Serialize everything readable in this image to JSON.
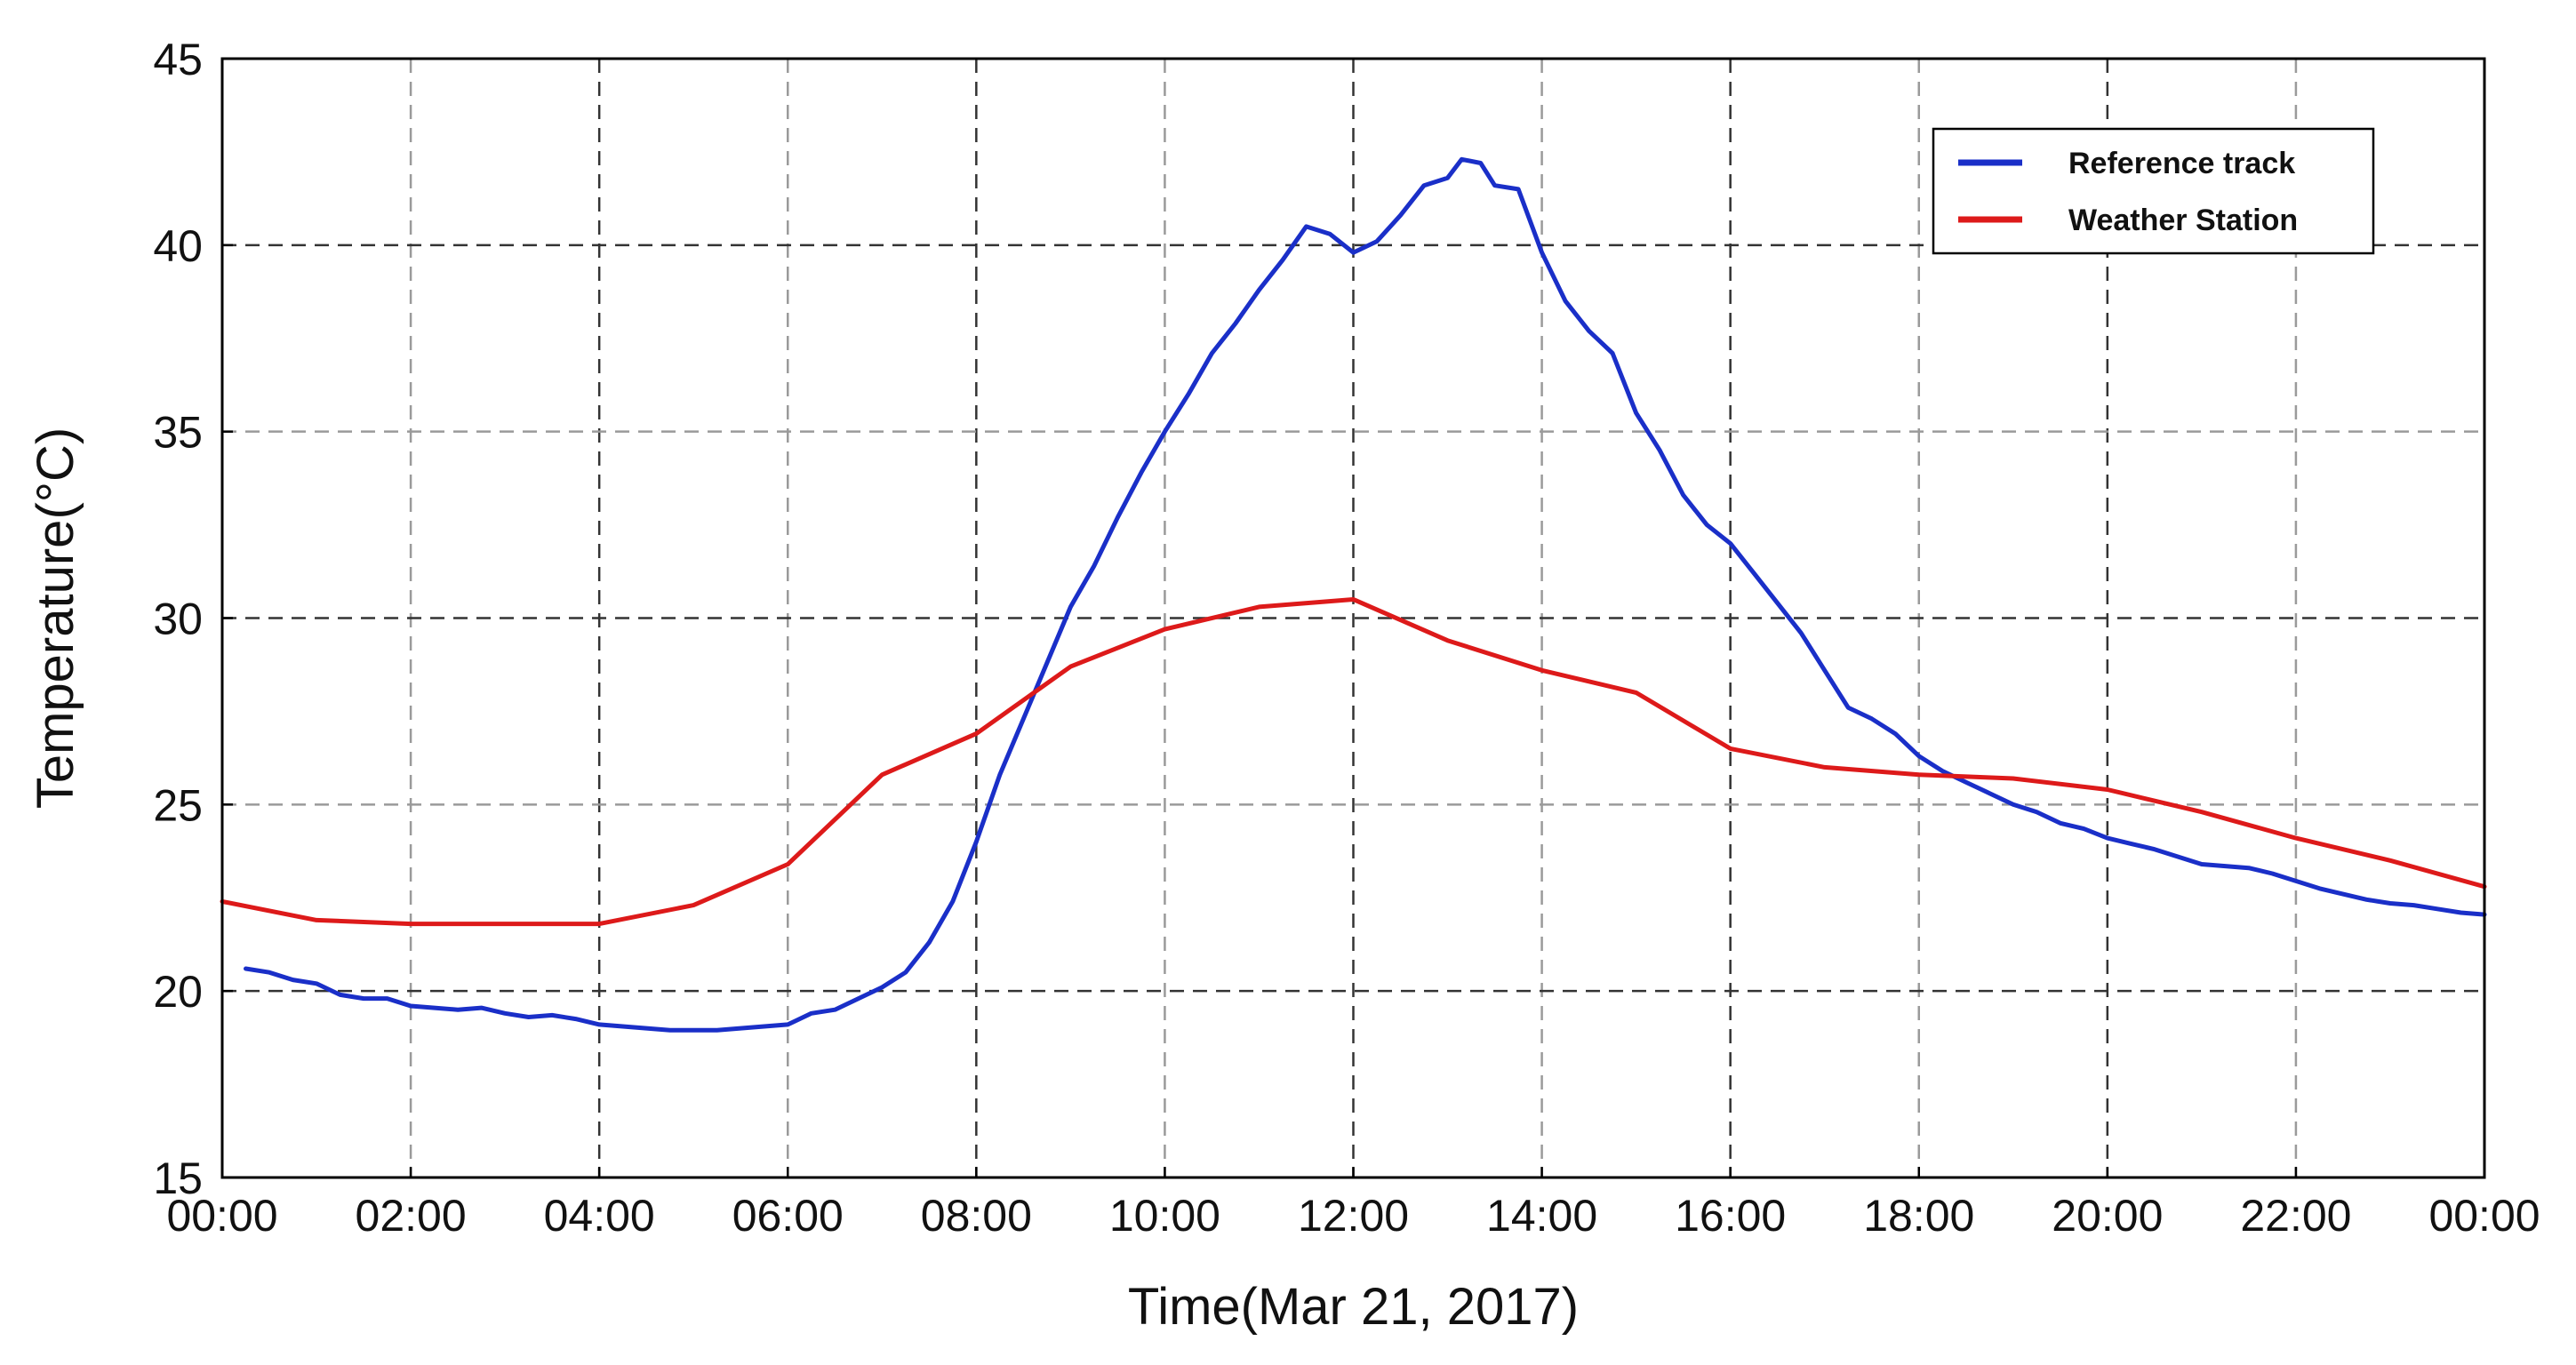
{
  "chart_data": {
    "type": "line",
    "xlabel": "Time(Mar 21, 2017)",
    "ylabel": "Temperature(°C)",
    "x_unit": "hours",
    "xlim": [
      0,
      24
    ],
    "ylim": [
      15,
      45
    ],
    "x_ticks": [
      0,
      2,
      4,
      6,
      8,
      10,
      12,
      14,
      16,
      18,
      20,
      22,
      24
    ],
    "x_tick_labels": [
      "00:00",
      "02:00",
      "04:00",
      "06:00",
      "08:00",
      "10:00",
      "12:00",
      "14:00",
      "16:00",
      "18:00",
      "20:00",
      "22:00",
      "00:00"
    ],
    "y_ticks": [
      15,
      20,
      25,
      30,
      35,
      40,
      45
    ],
    "y_tick_labels": [
      "15",
      "20",
      "25",
      "30",
      "35",
      "40",
      "45"
    ],
    "grid": true,
    "legend_position": "top-right",
    "series": [
      {
        "name": "Reference track",
        "color": "#1a2fc8",
        "points": [
          [
            0.25,
            20.6
          ],
          [
            0.5,
            20.5
          ],
          [
            0.75,
            20.3
          ],
          [
            1.0,
            20.2
          ],
          [
            1.25,
            19.9
          ],
          [
            1.5,
            19.8
          ],
          [
            1.75,
            19.8
          ],
          [
            2.0,
            19.6
          ],
          [
            2.25,
            19.55
          ],
          [
            2.5,
            19.5
          ],
          [
            2.75,
            19.55
          ],
          [
            3.0,
            19.4
          ],
          [
            3.25,
            19.3
          ],
          [
            3.5,
            19.35
          ],
          [
            3.75,
            19.25
          ],
          [
            4.0,
            19.1
          ],
          [
            4.25,
            19.05
          ],
          [
            4.5,
            19.0
          ],
          [
            4.75,
            18.95
          ],
          [
            5.0,
            18.95
          ],
          [
            5.25,
            18.95
          ],
          [
            5.5,
            19.0
          ],
          [
            5.75,
            19.05
          ],
          [
            6.0,
            19.1
          ],
          [
            6.25,
            19.4
          ],
          [
            6.5,
            19.5
          ],
          [
            6.75,
            19.8
          ],
          [
            7.0,
            20.1
          ],
          [
            7.25,
            20.5
          ],
          [
            7.5,
            21.3
          ],
          [
            7.75,
            22.4
          ],
          [
            8.0,
            24.0
          ],
          [
            8.25,
            25.8
          ],
          [
            8.5,
            27.3
          ],
          [
            8.75,
            28.8
          ],
          [
            9.0,
            30.3
          ],
          [
            9.25,
            31.4
          ],
          [
            9.5,
            32.7
          ],
          [
            9.75,
            33.9
          ],
          [
            10.0,
            35.0
          ],
          [
            10.25,
            36.0
          ],
          [
            10.5,
            37.1
          ],
          [
            10.75,
            37.9
          ],
          [
            11.0,
            38.8
          ],
          [
            11.25,
            39.6
          ],
          [
            11.5,
            40.5
          ],
          [
            11.75,
            40.3
          ],
          [
            12.0,
            39.8
          ],
          [
            12.25,
            40.1
          ],
          [
            12.5,
            40.8
          ],
          [
            12.75,
            41.6
          ],
          [
            13.0,
            41.8
          ],
          [
            13.15,
            42.3
          ],
          [
            13.35,
            42.2
          ],
          [
            13.5,
            41.6
          ],
          [
            13.75,
            41.5
          ],
          [
            14.0,
            39.8
          ],
          [
            14.25,
            38.5
          ],
          [
            14.5,
            37.7
          ],
          [
            14.75,
            37.1
          ],
          [
            15.0,
            35.5
          ],
          [
            15.25,
            34.5
          ],
          [
            15.5,
            33.3
          ],
          [
            15.75,
            32.5
          ],
          [
            16.0,
            32.0
          ],
          [
            16.25,
            31.2
          ],
          [
            16.5,
            30.4
          ],
          [
            16.75,
            29.6
          ],
          [
            17.0,
            28.6
          ],
          [
            17.25,
            27.6
          ],
          [
            17.5,
            27.3
          ],
          [
            17.75,
            26.9
          ],
          [
            18.0,
            26.3
          ],
          [
            18.25,
            25.9
          ],
          [
            18.5,
            25.6
          ],
          [
            18.75,
            25.3
          ],
          [
            19.0,
            25.0
          ],
          [
            19.25,
            24.8
          ],
          [
            19.5,
            24.5
          ],
          [
            19.75,
            24.35
          ],
          [
            20.0,
            24.1
          ],
          [
            20.25,
            23.95
          ],
          [
            20.5,
            23.8
          ],
          [
            20.75,
            23.6
          ],
          [
            21.0,
            23.4
          ],
          [
            21.25,
            23.35
          ],
          [
            21.5,
            23.3
          ],
          [
            21.75,
            23.15
          ],
          [
            22.0,
            22.95
          ],
          [
            22.25,
            22.75
          ],
          [
            22.5,
            22.6
          ],
          [
            22.75,
            22.45
          ],
          [
            23.0,
            22.35
          ],
          [
            23.25,
            22.3
          ],
          [
            23.5,
            22.2
          ],
          [
            23.75,
            22.1
          ],
          [
            24.0,
            22.05
          ]
        ]
      },
      {
        "name": "Weather Station",
        "color": "#dd1a1a",
        "points": [
          [
            0,
            22.4
          ],
          [
            1,
            21.9
          ],
          [
            2,
            21.8
          ],
          [
            3,
            21.8
          ],
          [
            4,
            21.8
          ],
          [
            5,
            22.3
          ],
          [
            6,
            23.4
          ],
          [
            7,
            25.8
          ],
          [
            8,
            26.9
          ],
          [
            9,
            28.7
          ],
          [
            10,
            29.7
          ],
          [
            11,
            30.3
          ],
          [
            12,
            30.5
          ],
          [
            13,
            29.4
          ],
          [
            14,
            28.6
          ],
          [
            15,
            28.0
          ],
          [
            16,
            26.5
          ],
          [
            17,
            26.0
          ],
          [
            18,
            25.8
          ],
          [
            19,
            25.7
          ],
          [
            20,
            25.4
          ],
          [
            21,
            24.8
          ],
          [
            22,
            24.1
          ],
          [
            23,
            23.5
          ],
          [
            24,
            22.8
          ]
        ]
      }
    ]
  }
}
